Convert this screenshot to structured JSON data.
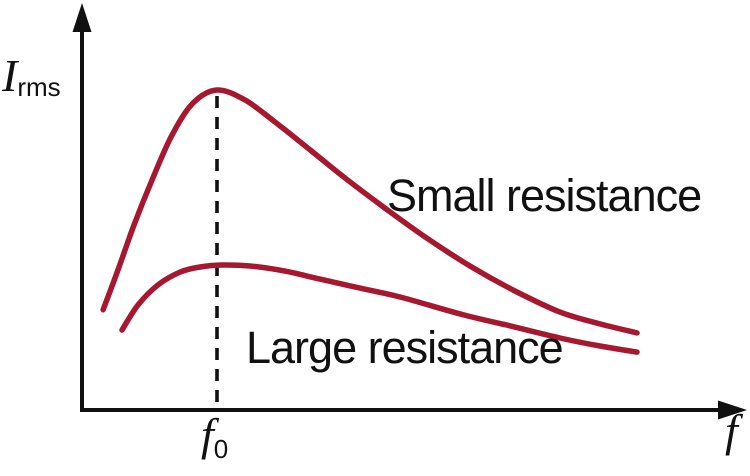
{
  "figure": {
    "background": "#ffffff",
    "colors": {
      "curve": "#A5182F",
      "axis": "#111111",
      "text": "#111111"
    },
    "y_axis_label": {
      "main": "I",
      "sub": "rms"
    },
    "x_axis_label": "f",
    "resonance_tick_label": {
      "main": "f",
      "sub": "0"
    }
  },
  "chart_data": {
    "type": "line",
    "title": "",
    "xlabel": "f",
    "ylabel": "I_rms",
    "axis_numeric_labels": false,
    "x_units": "frequency normalized to resonant frequency f0 (qualitative axes, no tick numbers)",
    "y_units": "rms current, relative (peak of small-resistance curve = 1.0)",
    "resonance_marker_x": 1.0,
    "resonance_marker_style": "vertical dashed line from small-resistance peak down to x-axis at f0",
    "xlim": [
      0,
      4.9
    ],
    "ylim": [
      0,
      1.27
    ],
    "grid": false,
    "legend_position": "inline-labels-on-plot",
    "series": [
      {
        "name": "Small resistance",
        "x": [
          0.156,
          0.267,
          0.385,
          0.519,
          0.667,
          0.822,
          1.0,
          1.207,
          1.43,
          1.689,
          1.948,
          2.244,
          2.541,
          2.874,
          3.207,
          3.541,
          3.837,
          4.111
        ],
        "y": [
          0.313,
          0.438,
          0.578,
          0.719,
          0.859,
          0.959,
          1.0,
          0.969,
          0.9,
          0.813,
          0.725,
          0.631,
          0.541,
          0.45,
          0.372,
          0.306,
          0.269,
          0.241
        ]
      },
      {
        "name": "Large resistance",
        "x": [
          0.296,
          0.415,
          0.563,
          0.726,
          0.874,
          1.037,
          1.244,
          1.504,
          1.763,
          2.059,
          2.356,
          2.83,
          3.17,
          3.541,
          3.837,
          4.111
        ],
        "y": [
          0.25,
          0.328,
          0.391,
          0.431,
          0.447,
          0.453,
          0.45,
          0.434,
          0.409,
          0.381,
          0.353,
          0.297,
          0.263,
          0.225,
          0.2,
          0.181
        ]
      }
    ]
  }
}
